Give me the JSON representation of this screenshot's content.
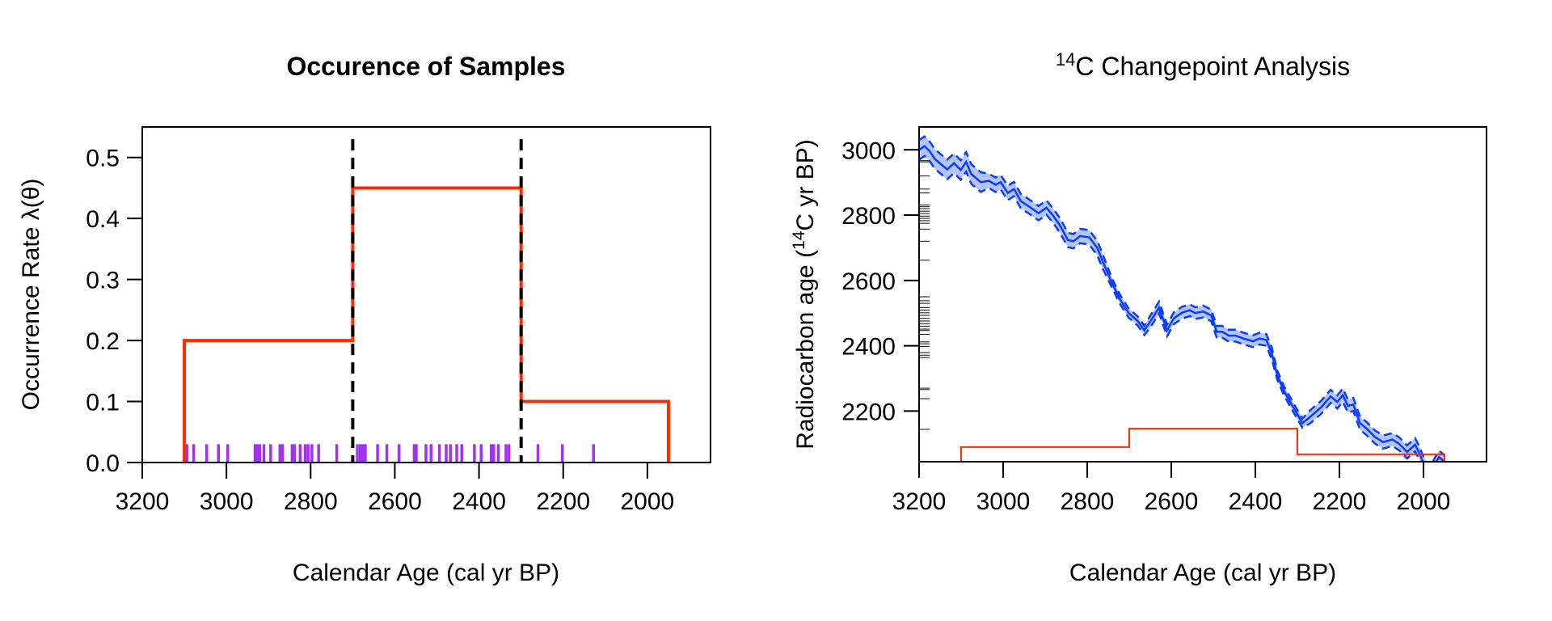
{
  "chart_data": [
    {
      "type": "line",
      "title": "Occurence of Samples",
      "xlabel": "Calendar Age (cal yr BP)",
      "ylabel": "Occurrence Rate λ(θ)",
      "xlim": [
        3200,
        1850
      ],
      "ylim": [
        0,
        0.55
      ],
      "x_ticks": [
        "3200",
        "3000",
        "2800",
        "2600",
        "2400",
        "2200",
        "2000"
      ],
      "y_ticks": [
        "0.0",
        "0.1",
        "0.2",
        "0.3",
        "0.4",
        "0.5"
      ],
      "grid": false,
      "colors": {
        "rate": "#ff2a00",
        "changepoints": "#000000",
        "samples": "#a033ee"
      },
      "rate_steps": [
        {
          "from": 3100,
          "to": 2700,
          "rate": 0.2
        },
        {
          "from": 2700,
          "to": 2300,
          "rate": 0.45
        },
        {
          "from": 2300,
          "to": 1950,
          "rate": 0.1
        }
      ],
      "changepoints": [
        2700,
        2300
      ],
      "sample_calendar_ages": [
        3094,
        3078,
        3047,
        3019,
        2997,
        2932,
        2927,
        2921,
        2911,
        2895,
        2873,
        2867,
        2844,
        2838,
        2825,
        2813,
        2806,
        2797,
        2781,
        2738,
        2689,
        2682,
        2676,
        2670,
        2641,
        2619,
        2590,
        2554,
        2549,
        2526,
        2514,
        2494,
        2478,
        2468,
        2453,
        2441,
        2411,
        2395,
        2371,
        2365,
        2354,
        2336,
        2329,
        2260,
        2202,
        2128
      ]
    },
    {
      "type": "line",
      "title_sup": "14",
      "title": "C Changepoint Analysis",
      "xlabel": "Calendar Age (cal yr BP)",
      "ylabel_pre": "Radiocarbon age (",
      "ylabel_sup": "14",
      "ylabel_post": "C yr BP)",
      "xlim": [
        3200,
        1850
      ],
      "ylim": [
        2045,
        3070
      ],
      "x_ticks": [
        "3200",
        "3000",
        "2800",
        "2600",
        "2400",
        "2200",
        "2000"
      ],
      "y_ticks": [
        "2200",
        "2400",
        "2600",
        "2800",
        "3000"
      ],
      "grid": false,
      "colors": {
        "curve": "#0a3cff",
        "band": "#b3c4ff",
        "rate": "#ff2a00",
        "rug": "#333333"
      },
      "calibration_curve": {
        "cal_age": [
          3200,
          3187,
          3175,
          3162,
          3133,
          3117,
          3101,
          3088,
          3076,
          3053,
          3034,
          3018,
          3006,
          2989,
          2974,
          2958,
          2939,
          2916,
          2897,
          2881,
          2865,
          2846,
          2833,
          2817,
          2795,
          2776,
          2763,
          2741,
          2722,
          2702,
          2680,
          2664,
          2651,
          2629,
          2610,
          2594,
          2575,
          2556,
          2543,
          2524,
          2505,
          2492,
          2479,
          2463,
          2447,
          2428,
          2406,
          2390,
          2374,
          2361,
          2348,
          2332,
          2310,
          2288,
          2269,
          2243,
          2221,
          2205,
          2192,
          2180,
          2167,
          2151,
          2135,
          2116,
          2096,
          2074,
          2058,
          2039,
          2020,
          2010,
          2001,
          1985,
          1963,
          1950
        ],
        "c14_age": [
          3000,
          3011,
          2996,
          2971,
          2940,
          2959,
          2938,
          2963,
          2926,
          2901,
          2905,
          2893,
          2901,
          2868,
          2880,
          2843,
          2827,
          2806,
          2823,
          2798,
          2769,
          2724,
          2720,
          2736,
          2732,
          2699,
          2658,
          2592,
          2542,
          2501,
          2476,
          2447,
          2472,
          2517,
          2447,
          2484,
          2501,
          2509,
          2500,
          2505,
          2493,
          2443,
          2443,
          2431,
          2431,
          2422,
          2414,
          2422,
          2418,
          2377,
          2311,
          2262,
          2212,
          2163,
          2183,
          2212,
          2245,
          2228,
          2249,
          2216,
          2220,
          2163,
          2146,
          2121,
          2105,
          2113,
          2100,
          2075,
          2097,
          2072,
          2043,
          2010,
          2059,
          2045
        ],
        "band_halfwidth": [
          30,
          30,
          30,
          30,
          30,
          30,
          30,
          30,
          30,
          30,
          22,
          22,
          22,
          22,
          22,
          22,
          22,
          22,
          22,
          22,
          22,
          22,
          22,
          22,
          22,
          22,
          22,
          14,
          14,
          14,
          14,
          14,
          18,
          18,
          18,
          18,
          18,
          18,
          18,
          18,
          18,
          18,
          18,
          18,
          18,
          18,
          18,
          18,
          18,
          18,
          14,
          14,
          14,
          14,
          20,
          20,
          20,
          20,
          20,
          20,
          20,
          20,
          20,
          20,
          20,
          20,
          20,
          20,
          20,
          20,
          20,
          20,
          20,
          20
        ]
      },
      "rate_steps": [
        {
          "from": 3100,
          "to": 2700,
          "rate": 0.2
        },
        {
          "from": 2700,
          "to": 2300,
          "rate": 0.45
        },
        {
          "from": 2300,
          "to": 1950,
          "rate": 0.1
        }
      ],
      "radiocarbon_determinations": [
        2967,
        2963,
        2920,
        2880,
        2868,
        2831,
        2826,
        2820,
        2812,
        2805,
        2797,
        2790,
        2783,
        2775,
        2757,
        2720,
        2662,
        2550,
        2538,
        2530,
        2517,
        2509,
        2501,
        2493,
        2484,
        2476,
        2468,
        2460,
        2451,
        2447,
        2435,
        2412,
        2406,
        2398,
        2379,
        2371,
        2364,
        2270,
        2266,
        2238,
        2144
      ]
    }
  ]
}
